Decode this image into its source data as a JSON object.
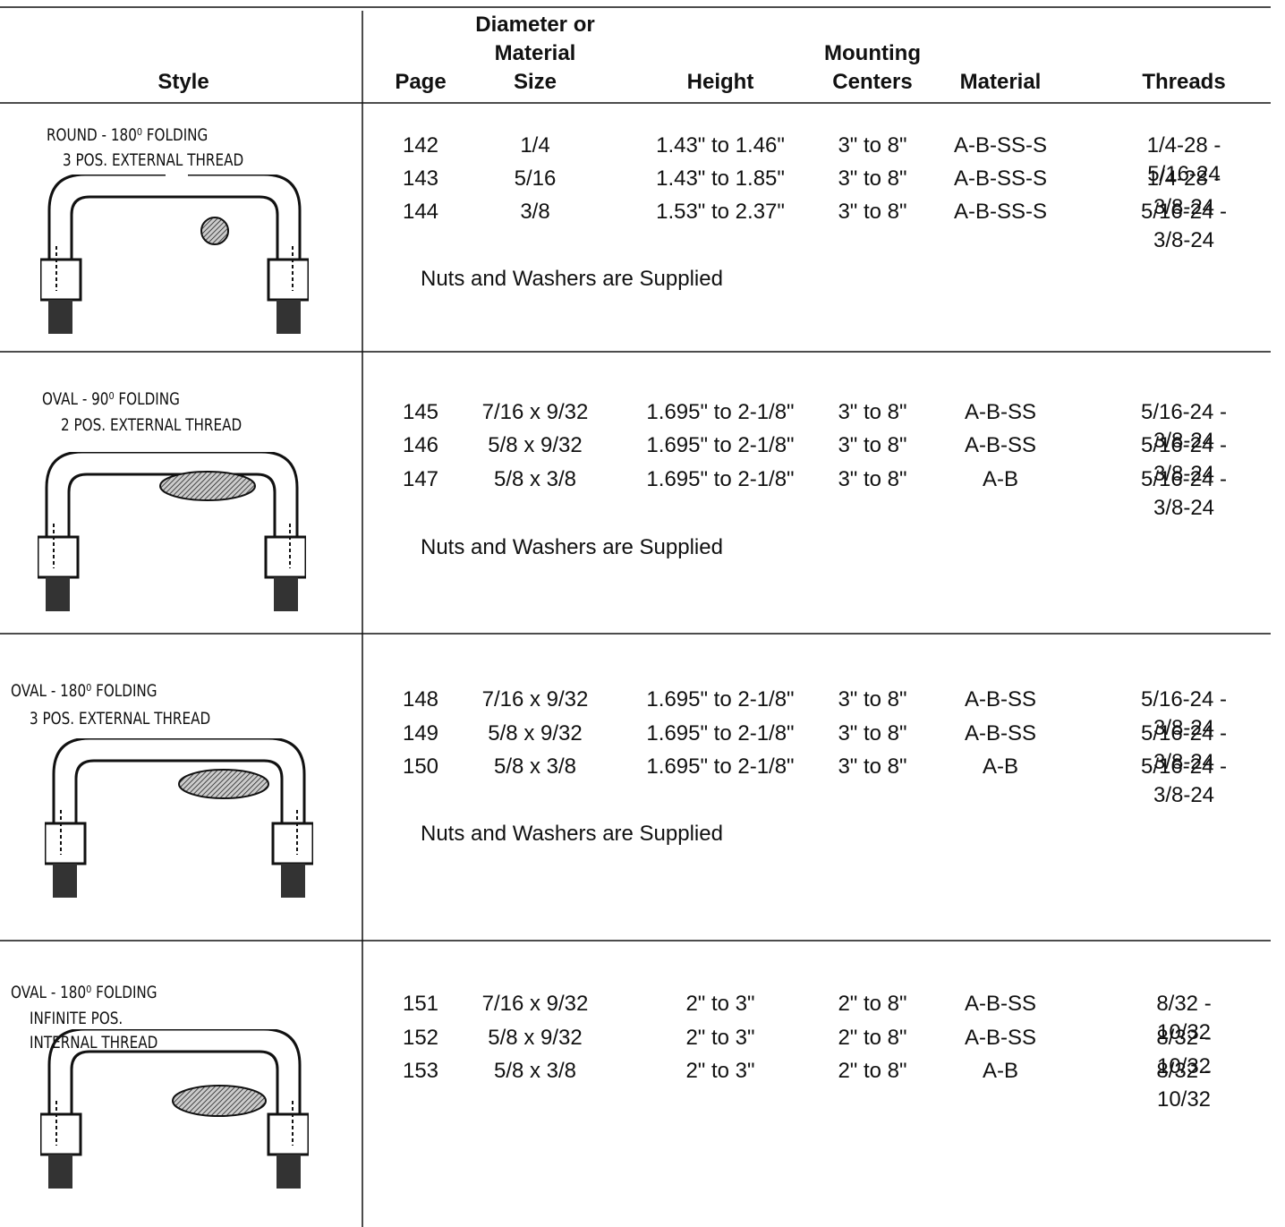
{
  "header": {
    "columns": [
      "Style",
      "Page",
      "Diameter or\nMaterial\nSize",
      "Height",
      "Mounting\nCenters",
      "Material",
      "Threads"
    ]
  },
  "groups": [
    {
      "style": [
        "ROUND - 180⁰ FOLDING",
        "3 POS. EXTERNAL THREAD"
      ],
      "rows": [
        [
          "142",
          "1/4",
          "1.43\" to 1.46\"",
          "3\" to 8\"",
          "A-B-SS-S",
          "1/4-28 - 5/16-24"
        ],
        [
          "143",
          "5/16",
          "1.43\" to 1.85\"",
          "3\" to 8\"",
          "A-B-SS-S",
          "1/4-28 - 3/8-24"
        ],
        [
          "144",
          "3/8",
          "1.53\" to 2.37\"",
          "3\" to 8\"",
          "A-B-SS-S",
          "5/16-24 - 3/8-24"
        ]
      ],
      "note": "Nuts and Washers are Supplied"
    },
    {
      "style": [
        "OVAL - 90⁰ FOLDING",
        "2 POS. EXTERNAL THREAD"
      ],
      "rows": [
        [
          "145",
          "7/16 x 9/32",
          "1.695\" to 2-1/8\"",
          "3\" to 8\"",
          "A-B-SS",
          "5/16-24 - 3/8-24"
        ],
        [
          "146",
          "5/8 x 9/32",
          "1.695\" to 2-1/8\"",
          "3\" to 8\"",
          "A-B-SS",
          "5/16-24 - 3/8-24"
        ],
        [
          "147",
          "5/8 x 3/8",
          "1.695\" to 2-1/8\"",
          "3\" to 8\"",
          "A-B",
          "5/16-24 - 3/8-24"
        ]
      ],
      "note": "Nuts and Washers are Supplied"
    },
    {
      "style": [
        "OVAL - 180⁰ FOLDING",
        "3 POS. EXTERNAL THREAD"
      ],
      "rows": [
        [
          "148",
          "7/16 x 9/32",
          "1.695\" to 2-1/8\"",
          "3\" to 8\"",
          "A-B-SS",
          "5/16-24 - 3/8-24"
        ],
        [
          "149",
          "5/8 x 9/32",
          "1.695\" to 2-1/8\"",
          "3\" to 8\"",
          "A-B-SS",
          "5/16-24 - 3/8-24"
        ],
        [
          "150",
          "5/8 x 3/8",
          "1.695\" to 2-1/8\"",
          "3\" to 8\"",
          "A-B",
          "5/16-24 - 3/8-24"
        ]
      ],
      "note": "Nuts and Washers are Supplied"
    },
    {
      "style": [
        "OVAL - 180⁰ FOLDING",
        "INFINITE POS.",
        "INTERNAL THREAD"
      ],
      "rows": [
        [
          "151",
          "7/16 x 9/32",
          "2\" to 3\"",
          "2\" to 8\"",
          "A-B-SS",
          "8/32 - 10/32"
        ],
        [
          "152",
          "5/8 x 9/32",
          "2\" to 3\"",
          "2\" to 8\"",
          "A-B-SS",
          "8/32 - 10/32"
        ],
        [
          "153",
          "5/8 x 3/8",
          "2\" to 3\"",
          "2\" to 8\"",
          "A-B",
          "8/32 - 10/32"
        ]
      ]
    }
  ]
}
